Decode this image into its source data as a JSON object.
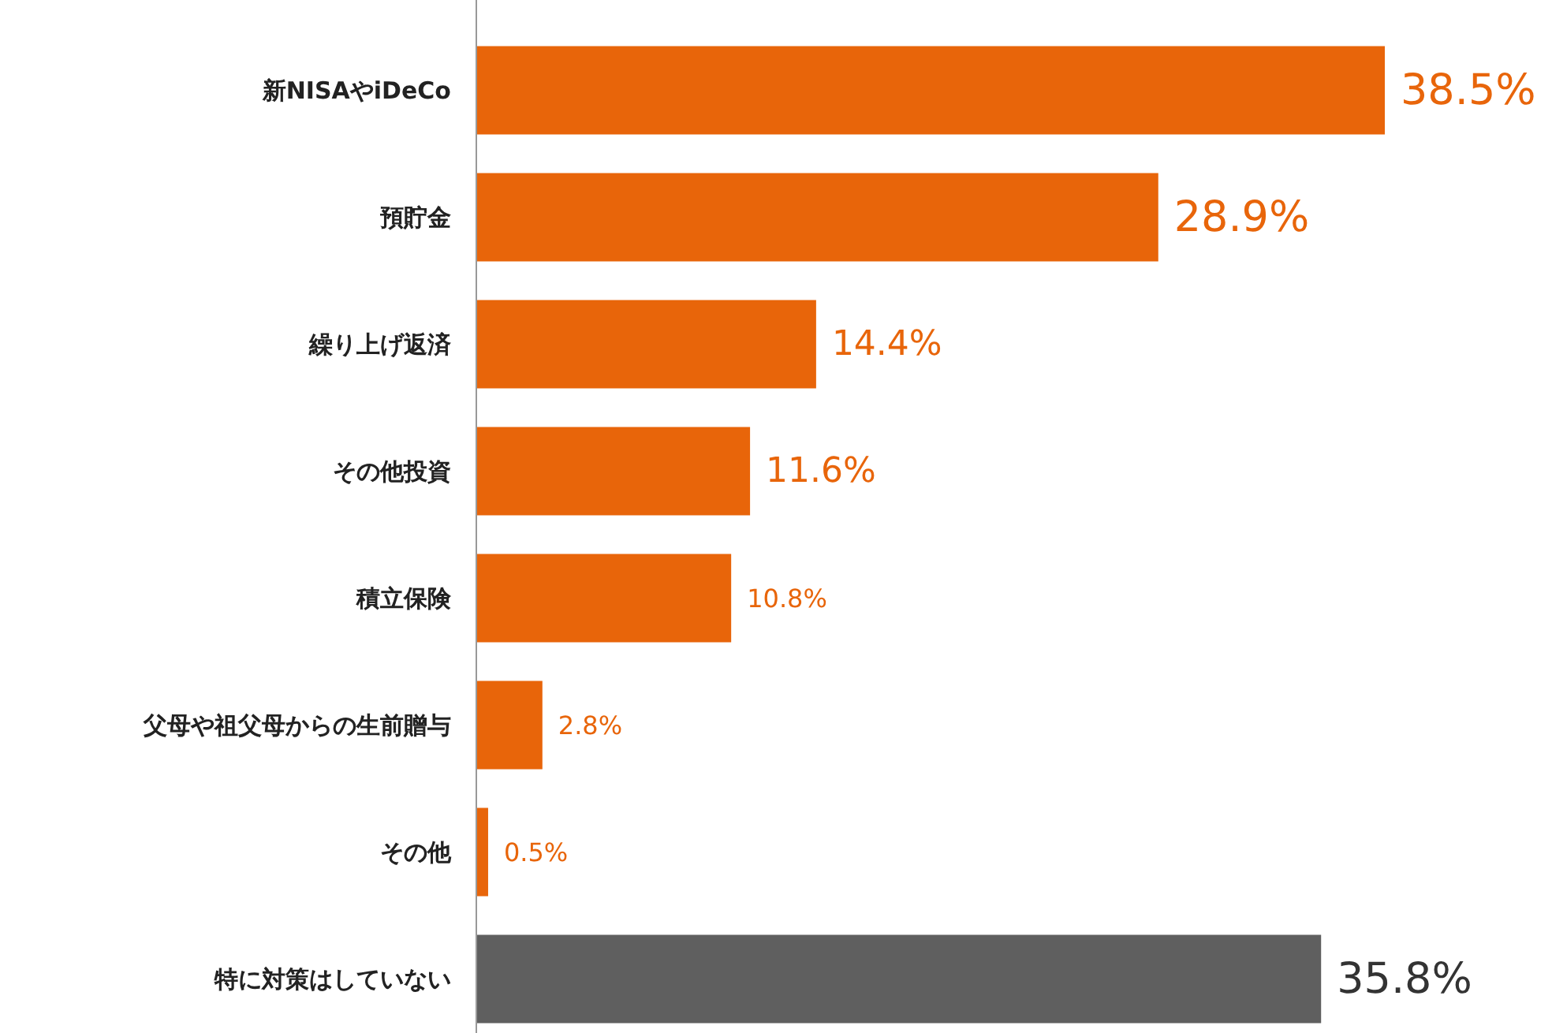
{
  "chart_data": {
    "type": "bar",
    "orientation": "horizontal",
    "categories": [
      "新NISAやiDeCo",
      "預貯金",
      "繰り上げ返済",
      "その他投資",
      "積立保険",
      "父母や祖父母からの生前贈与",
      "その他",
      "特に対策はしていない"
    ],
    "values": [
      38.5,
      28.9,
      14.4,
      11.6,
      10.8,
      2.8,
      0.5,
      35.8
    ],
    "colors": [
      "#e8650a",
      "#e8650a",
      "#e8650a",
      "#e8650a",
      "#e8650a",
      "#e8650a",
      "#e8650a",
      "#5f5f5f"
    ],
    "value_labels": [
      "38.5%",
      "28.9%",
      "14.4%",
      "11.6%",
      "10.8%",
      "2.8%",
      "0.5%",
      "35.8%"
    ]
  }
}
